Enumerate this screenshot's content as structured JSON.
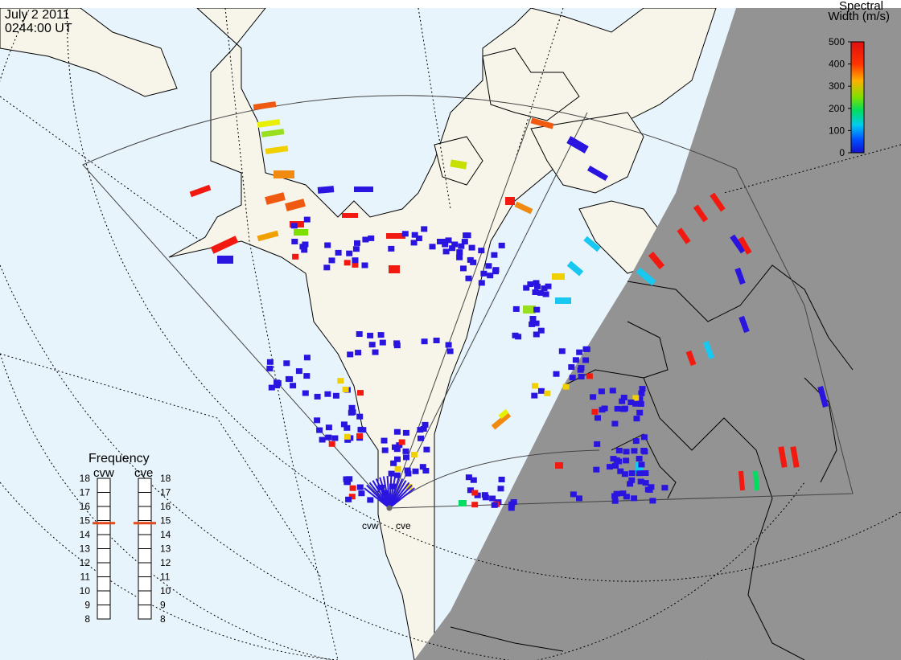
{
  "header": {
    "date": "July  2 2011",
    "time": "0244:00 UT"
  },
  "legend": {
    "title_line1": "Spectral",
    "title_line2": "Width (m/s)",
    "ticks": [
      "500",
      "400",
      "300",
      "200",
      "100",
      "0"
    ]
  },
  "frequency_panel": {
    "title": "Frequency",
    "radars": [
      {
        "name": "cvw",
        "selected": 15
      },
      {
        "name": "cve",
        "selected": 15
      }
    ],
    "scale": [
      "18",
      "17",
      "16",
      "15",
      "14",
      "13",
      "12",
      "11",
      "10",
      "9",
      "8"
    ]
  },
  "radar_labels": [
    "cvw",
    "cve"
  ],
  "colors": {
    "ocean": "#e8f4fc",
    "land_day": "#f7f5ea",
    "night": "#939393",
    "sw_low": "#2a14e0",
    "sw_high": "#f21a10",
    "marker": "#e2491d"
  },
  "icons": {
    "radar_site": "radar-site-icon"
  }
}
